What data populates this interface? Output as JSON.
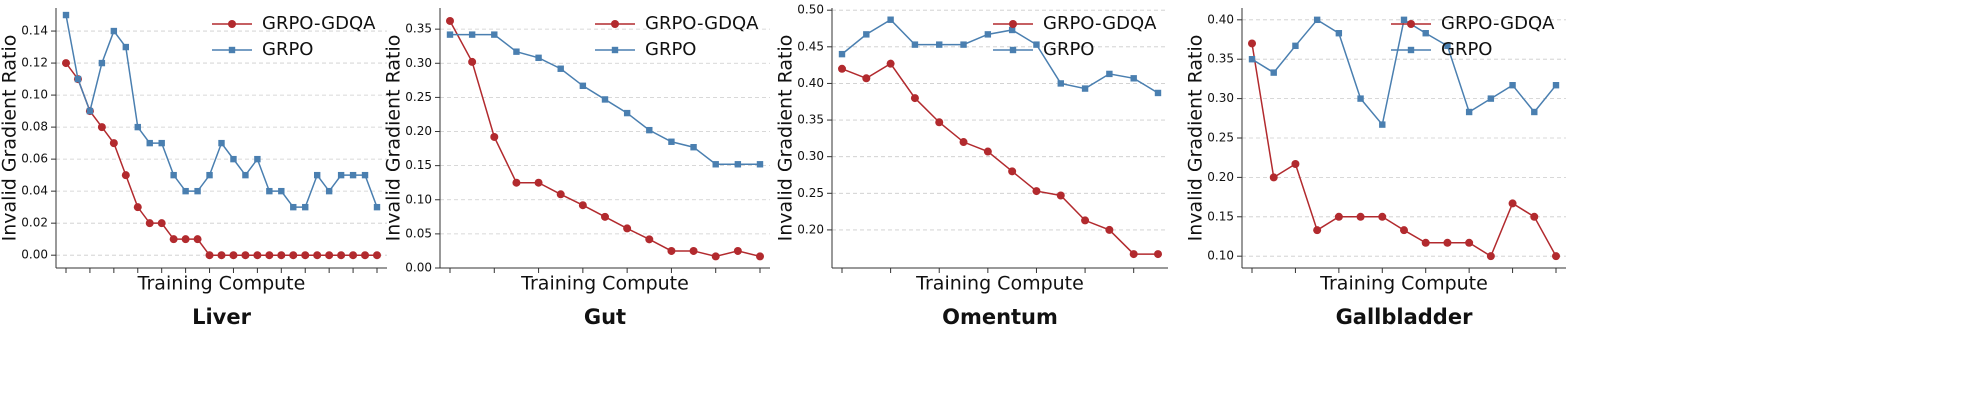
{
  "chart_data": [
    {
      "type": "line",
      "title": "Liver",
      "xlabel": "Training Compute",
      "ylabel": "Invalid Gradient Ratio",
      "categories": [
        null,
        null,
        null,
        null,
        null,
        null,
        null,
        null,
        null,
        null,
        null,
        null,
        null,
        null,
        null,
        null,
        null,
        null,
        null,
        null,
        null,
        null,
        null,
        null,
        null,
        null,
        null
      ],
      "series": [
        {
          "name": "GRPO-GDQA",
          "color": "#b22a2e",
          "marker": "circle",
          "values": [
            0.12,
            0.11,
            0.09,
            0.08,
            0.07,
            0.05,
            0.03,
            0.02,
            0.02,
            0.01,
            0.01,
            0.01,
            0,
            0,
            0,
            0,
            0,
            0,
            0,
            0,
            0,
            0,
            0,
            0,
            0,
            0,
            0
          ]
        },
        {
          "name": "GRPO",
          "color": "#4a7fb0",
          "marker": "square",
          "values": [
            0.15,
            0.11,
            0.09,
            0.12,
            0.14,
            0.13,
            0.08,
            0.07,
            0.07,
            0.05,
            0.04,
            0.04,
            0.05,
            0.07,
            0.06,
            0.05,
            0.06,
            0.04,
            0.04,
            0.03,
            0.03,
            0.05,
            0.04,
            0.05,
            0.05,
            0.05,
            0.03
          ]
        }
      ],
      "ylim": [
        -0.008,
        0.1544
      ],
      "yticks": [
        {
          "value": 0,
          "label": "0.00"
        },
        0.02,
        0.04,
        0.06,
        0.08,
        {
          "value": 0.1,
          "label": "0.10"
        },
        0.12,
        0.14
      ],
      "grid": true,
      "legend": "upper right"
    },
    {
      "type": "line",
      "title": "Gut",
      "xlabel": "Training Compute",
      "ylabel": "Invalid Gradient Ratio",
      "categories": [
        null,
        null,
        null,
        null,
        null,
        null,
        null,
        null,
        null,
        null,
        null,
        null,
        null,
        null,
        null
      ],
      "series": [
        {
          "name": "GRPO-GDQA",
          "color": "#b22a2e",
          "marker": "circle",
          "values": [
            0.362,
            0.302,
            0.192,
            0.125,
            0.125,
            0.108,
            0.092,
            0.075,
            0.058,
            0.042,
            0.025,
            0.025,
            0.017,
            0.025,
            0.017
          ]
        },
        {
          "name": "GRPO",
          "color": "#4a7fb0",
          "marker": "square",
          "values": [
            0.342,
            0.342,
            0.342,
            0.317,
            0.308,
            0.292,
            0.267,
            0.247,
            0.227,
            0.202,
            0.185,
            0.177,
            0.152,
            0.152,
            0.152
          ]
        }
      ],
      "ylim": [
        0,
        0.381
      ],
      "yticks": [
        {
          "value": 0,
          "label": "0.00"
        },
        0.05,
        {
          "value": 0.1,
          "label": "0.10"
        },
        0.15,
        {
          "value": 0.2,
          "label": "0.20"
        },
        0.25,
        {
          "value": 0.3,
          "label": "0.30"
        },
        0.35
      ],
      "grid": true,
      "legend": "upper right"
    },
    {
      "type": "line",
      "title": "Omentum",
      "xlabel": "Training Compute",
      "ylabel": "Invalid Gradient Ratio",
      "categories": [
        null,
        null,
        null,
        null,
        null,
        null,
        null,
        null,
        null,
        null,
        null,
        null,
        null,
        null
      ],
      "series": [
        {
          "name": "GRPO-GDQA",
          "color": "#b22a2e",
          "marker": "circle",
          "values": [
            0.42,
            0.407,
            0.427,
            0.38,
            0.347,
            0.32,
            0.307,
            0.28,
            0.253,
            0.247,
            0.213,
            0.2,
            0.167,
            0.167
          ]
        },
        {
          "name": "GRPO",
          "color": "#4a7fb0",
          "marker": "square",
          "values": [
            0.44,
            0.467,
            0.487,
            0.453,
            0.453,
            0.453,
            0.467,
            0.473,
            0.453,
            0.4,
            0.393,
            0.413,
            0.407,
            0.387
          ]
        }
      ],
      "ylim": [
        0.148,
        0.503
      ],
      "yticks": [
        {
          "value": 0.2,
          "label": "0.20"
        },
        0.25,
        {
          "value": 0.3,
          "label": "0.30"
        },
        0.35,
        {
          "value": 0.4,
          "label": "0.40"
        },
        0.45,
        {
          "value": 0.5,
          "label": "0.50"
        }
      ],
      "grid": true,
      "legend": "upper right"
    },
    {
      "type": "line",
      "title": "Gallbladder",
      "xlabel": "Training Compute",
      "ylabel": "Invalid Gradient Ratio",
      "categories": [
        null,
        null,
        null,
        null,
        null,
        null,
        null,
        null,
        null,
        null,
        null,
        null,
        null,
        null,
        null
      ],
      "series": [
        {
          "name": "GRPO-GDQA",
          "color": "#b22a2e",
          "marker": "circle",
          "values": [
            0.37,
            0.2,
            0.217,
            0.133,
            0.15,
            0.15,
            0.15,
            0.133,
            0.117,
            0.117,
            0.117,
            0.1,
            0.167,
            0.15,
            0.1
          ]
        },
        {
          "name": "GRPO",
          "color": "#4a7fb0",
          "marker": "square",
          "values": [
            0.35,
            0.333,
            0.367,
            0.4,
            0.383,
            0.3,
            0.267,
            0.4,
            0.383,
            0.367,
            0.283,
            0.3,
            0.317,
            0.283,
            0.317
          ]
        }
      ],
      "ylim": [
        0.085,
        0.415
      ],
      "yticks": [
        {
          "value": 0.1,
          "label": "0.10"
        },
        0.15,
        {
          "value": 0.2,
          "label": "0.20"
        },
        0.25,
        {
          "value": 0.3,
          "label": "0.30"
        },
        0.35,
        {
          "value": 0.4,
          "label": "0.40"
        }
      ],
      "grid": true,
      "legend": "upper right"
    }
  ]
}
